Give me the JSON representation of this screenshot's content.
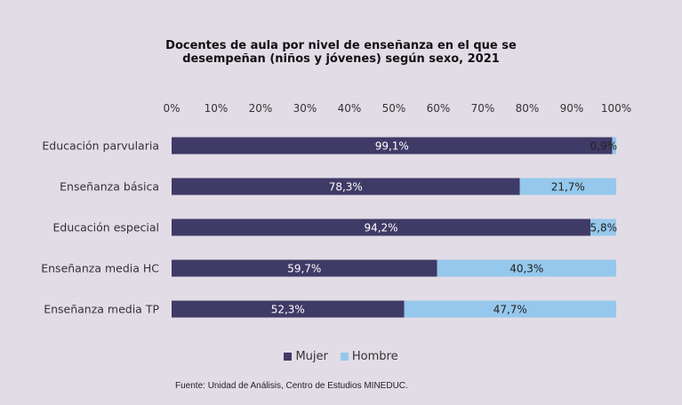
{
  "chart_data": {
    "type": "bar",
    "orientation": "horizontal",
    "stacked": true,
    "title_lines": [
      "Docentes de aula por nivel de enseñanza en el que se",
      "desempeñan (niños y jóvenes) según sexo, 2021"
    ],
    "categories": [
      "Educación parvularia",
      "Enseñanza básica",
      "Educación especial",
      "Enseñanza media HC",
      "Enseñanza media TP"
    ],
    "series": [
      {
        "name": "Mujer",
        "color": "#3f3a66",
        "label_color": "#ffffff",
        "values": [
          99.1,
          78.3,
          94.2,
          59.7,
          52.3
        ],
        "labels": [
          "99,1%",
          "78,3%",
          "94,2%",
          "59,7%",
          "52,3%"
        ]
      },
      {
        "name": "Hombre",
        "color": "#95c8ec",
        "label_color": "#222222",
        "values": [
          0.9,
          21.7,
          5.8,
          40.3,
          47.7
        ],
        "labels": [
          "0,9%",
          "21,7%",
          "5,8%",
          "40,3%",
          "47,7%"
        ]
      }
    ],
    "xlim": [
      0,
      100
    ],
    "xticks": [
      "0%",
      "10%",
      "20%",
      "30%",
      "40%",
      "50%",
      "60%",
      "70%",
      "80%",
      "90%",
      "100%"
    ],
    "xaxis_position": "top",
    "grid": false,
    "legend_position": "bottom"
  },
  "source_note": "Fuente: Unidad de Análisis, Centro de Estudios MINEDUC."
}
